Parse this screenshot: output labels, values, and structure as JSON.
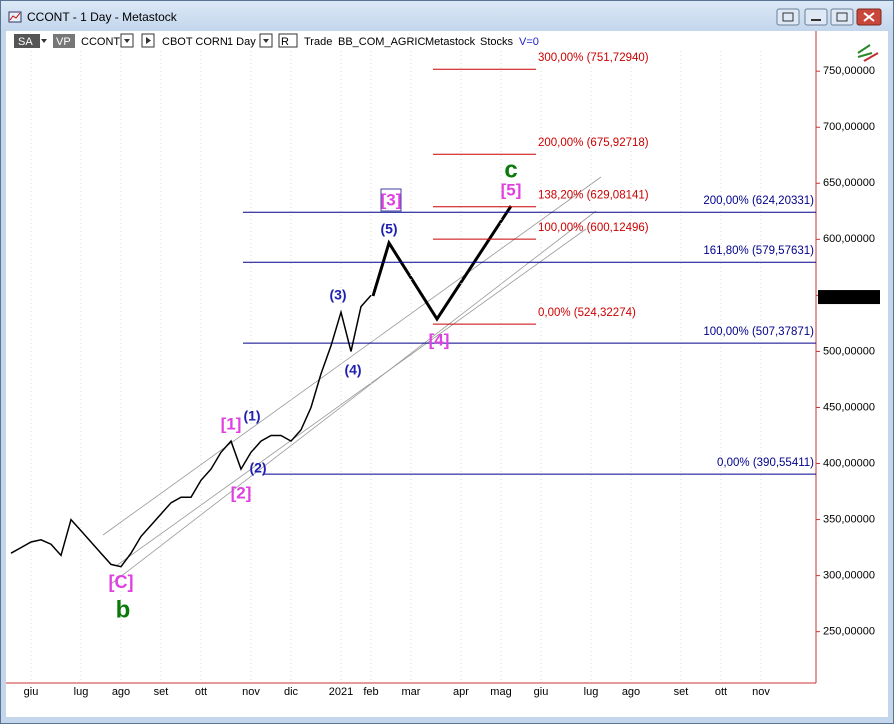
{
  "window": {
    "title": "CCONT - 1 Day - Metastock"
  },
  "toolbar": {
    "sa": "SA",
    "vp": "VP",
    "symbol": "CCONT",
    "name": "CBOT CORN",
    "period": "1 Day",
    "r": "R",
    "mode": "Trade",
    "group": "BB_COM_AGRIC",
    "source": "Metastock",
    "kind": "Stocks",
    "volume": "V=0"
  },
  "chart_data": {
    "type": "line",
    "color": "#000000",
    "categories": [
      null,
      null,
      "giu",
      null,
      null,
      null,
      null,
      "lug",
      null,
      null,
      null,
      "ago",
      null,
      null,
      null,
      "set",
      null,
      null,
      null,
      "ott",
      null,
      null,
      null,
      null,
      "nov",
      null,
      null,
      null,
      "dic",
      null,
      null,
      null,
      null,
      "2021",
      null,
      null,
      "feb",
      null,
      null,
      null,
      "mar",
      null,
      null,
      null,
      null,
      "apr",
      null,
      null,
      null,
      "mag",
      null,
      null,
      null,
      "giu",
      null,
      null,
      null,
      null,
      "lug",
      null,
      null,
      null,
      "ago",
      null,
      null,
      null,
      null,
      "set",
      null,
      null,
      null,
      "ott",
      null,
      null,
      null,
      "nov",
      null,
      null,
      null,
      null,
      null
    ],
    "values": [
      320,
      325,
      330,
      332,
      328,
      318,
      350,
      340,
      330,
      320,
      310,
      308,
      320,
      335,
      345,
      355,
      365,
      370,
      370,
      385,
      395,
      410,
      420,
      395,
      410,
      420,
      425,
      425,
      420,
      430,
      450,
      480,
      505,
      535,
      500,
      540,
      550,
      null,
      null,
      null,
      null,
      null,
      null,
      null,
      null,
      null,
      null,
      null,
      null,
      null,
      null,
      null,
      null,
      null,
      null,
      null,
      null,
      null,
      null,
      null,
      null,
      null,
      null,
      null,
      null,
      null,
      null,
      null,
      null,
      null,
      null,
      null,
      null,
      null,
      null,
      null,
      null,
      null,
      null,
      null,
      null
    ],
    "ylim": [
      206,
      768
    ],
    "yticks": [
      {
        "value": 250,
        "label": "250,00000"
      },
      {
        "value": 300,
        "label": "300,00000"
      },
      {
        "value": 350,
        "label": "350,00000"
      },
      {
        "value": 400,
        "label": "400,00000"
      },
      {
        "value": 450,
        "label": "450,00000"
      },
      {
        "value": 500,
        "label": "500,00000"
      },
      {
        "value": 550,
        "label": "550,00000"
      },
      {
        "value": 600,
        "label": "600,00000"
      },
      {
        "value": 650,
        "label": "650,00000"
      },
      {
        "value": 700,
        "label": "700,00000"
      },
      {
        "value": 750,
        "label": "750,00000"
      }
    ],
    "last_price": {
      "value": 548.5,
      "label": "548,50000"
    },
    "fib_projection": [
      {
        "value": 751.7294,
        "label": "300,00% (751,72940)",
        "color": "#cc0000"
      },
      {
        "value": 675.92718,
        "label": "200,00% (675,92718)",
        "color": "#cc0000"
      },
      {
        "value": 629.08141,
        "label": "138,20% (629,08141)",
        "color": "#cc0000"
      },
      {
        "value": 600.12496,
        "label": "100,00% (600,12496)",
        "color": "#cc0000"
      },
      {
        "value": 524.32274,
        "label": "0,00% (524,32274)",
        "color": "#cc0000"
      }
    ],
    "fib_retracement": [
      {
        "value": 624.20331,
        "label": "200,00% (624,20331)",
        "color": "#00008b"
      },
      {
        "value": 579.57631,
        "label": "161,80% (579,57631)",
        "color": "#00008b"
      },
      {
        "value": 507.37871,
        "label": "100,00% (507,37871)",
        "color": "#00008b"
      },
      {
        "value": 390.55411,
        "label": "0,00% (390,55411)",
        "color": "#00008b"
      }
    ],
    "wave_labels": {
      "c_big": "[C]",
      "b": "b",
      "w1": "[1]",
      "s1": "(1)",
      "s2": "(2)",
      "w2": "[2]",
      "s3": "(3)",
      "s4": "(4)",
      "s5": "(5)",
      "w3": "[3]",
      "w4": "[4]",
      "w5": "[5]",
      "c": "c"
    }
  }
}
